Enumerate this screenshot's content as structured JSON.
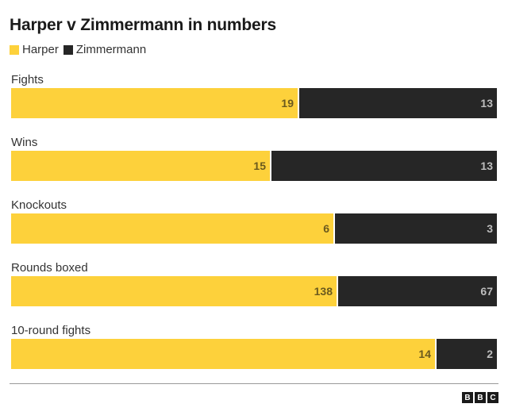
{
  "title": "Harper v Zimmermann in numbers",
  "colors": {
    "harper": "#fdd13b",
    "zimmermann": "#262626"
  },
  "logo": [
    "B",
    "B",
    "C"
  ],
  "chart_data": {
    "type": "bar",
    "orientation": "horizontal",
    "stacked": "percent",
    "title": "Harper v Zimmermann in numbers",
    "legend": "top-left",
    "grid": false,
    "categories": [
      "Fights",
      "Wins",
      "Knockouts",
      "Rounds boxed",
      "10-round fights"
    ],
    "series": [
      {
        "name": "Harper",
        "values": [
          19,
          15,
          6,
          138,
          14
        ]
      },
      {
        "name": "Zimmermann",
        "values": [
          13,
          13,
          3,
          67,
          2
        ]
      }
    ]
  }
}
